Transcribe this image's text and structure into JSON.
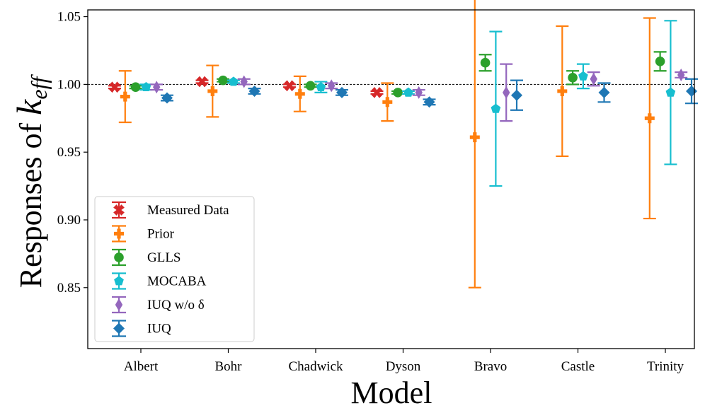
{
  "chart_data": {
    "type": "scatter",
    "xlabel": "Model",
    "ylabel_prefix": "Responses of ",
    "ylabel_symbol": "k",
    "ylabel_subscript": "eff",
    "categories": [
      "Albert",
      "Bohr",
      "Chadwick",
      "Dyson",
      "Bravo",
      "Castle",
      "Trinity"
    ],
    "ylim": [
      0.805,
      1.055
    ],
    "yticks": [
      "0.85",
      "0.90",
      "0.95",
      "1.00",
      "1.05"
    ],
    "reference_line": 1.0,
    "grid": false,
    "legend_position": "lower-left",
    "series": [
      {
        "name": "Measured Data",
        "color": "#d62728",
        "marker": "X",
        "values": [
          0.998,
          1.002,
          0.999,
          0.994,
          null,
          null,
          null
        ],
        "err": [
          0.001,
          0.001,
          0.001,
          0.001,
          null,
          null,
          null
        ]
      },
      {
        "name": "Prior",
        "color": "#ff7f0e",
        "marker": "P",
        "values": [
          0.991,
          0.995,
          0.993,
          0.987,
          0.961,
          0.995,
          0.975
        ],
        "err": [
          0.019,
          0.019,
          0.013,
          0.014,
          0.111,
          0.048,
          0.074
        ]
      },
      {
        "name": "GLLS",
        "color": "#2ca02c",
        "marker": "o",
        "values": [
          0.998,
          1.003,
          0.999,
          0.994,
          1.016,
          1.005,
          1.017
        ],
        "err": [
          0.001,
          0.001,
          0.001,
          0.001,
          0.006,
          0.005,
          0.007
        ]
      },
      {
        "name": "MOCABA",
        "color": "#17becf",
        "marker": "p",
        "values": [
          0.998,
          1.002,
          0.998,
          0.994,
          0.982,
          1.006,
          0.994
        ],
        "err": [
          0.002,
          0.001,
          0.004,
          0.001,
          0.057,
          0.009,
          0.053
        ]
      },
      {
        "name": "IUQ w/o δ",
        "color": "#9467bd",
        "marker": "d",
        "values": [
          0.998,
          1.002,
          0.999,
          0.994,
          0.994,
          1.004,
          1.007
        ],
        "err": [
          0.002,
          0.002,
          0.002,
          0.002,
          0.021,
          0.005,
          0.002
        ]
      },
      {
        "name": "IUQ",
        "color": "#1f77b4",
        "marker": "D",
        "values": [
          0.99,
          0.995,
          0.994,
          0.987,
          0.992,
          0.994,
          0.995
        ],
        "err": [
          0.002,
          0.002,
          0.002,
          0.002,
          0.011,
          0.007,
          0.009
        ]
      }
    ]
  }
}
